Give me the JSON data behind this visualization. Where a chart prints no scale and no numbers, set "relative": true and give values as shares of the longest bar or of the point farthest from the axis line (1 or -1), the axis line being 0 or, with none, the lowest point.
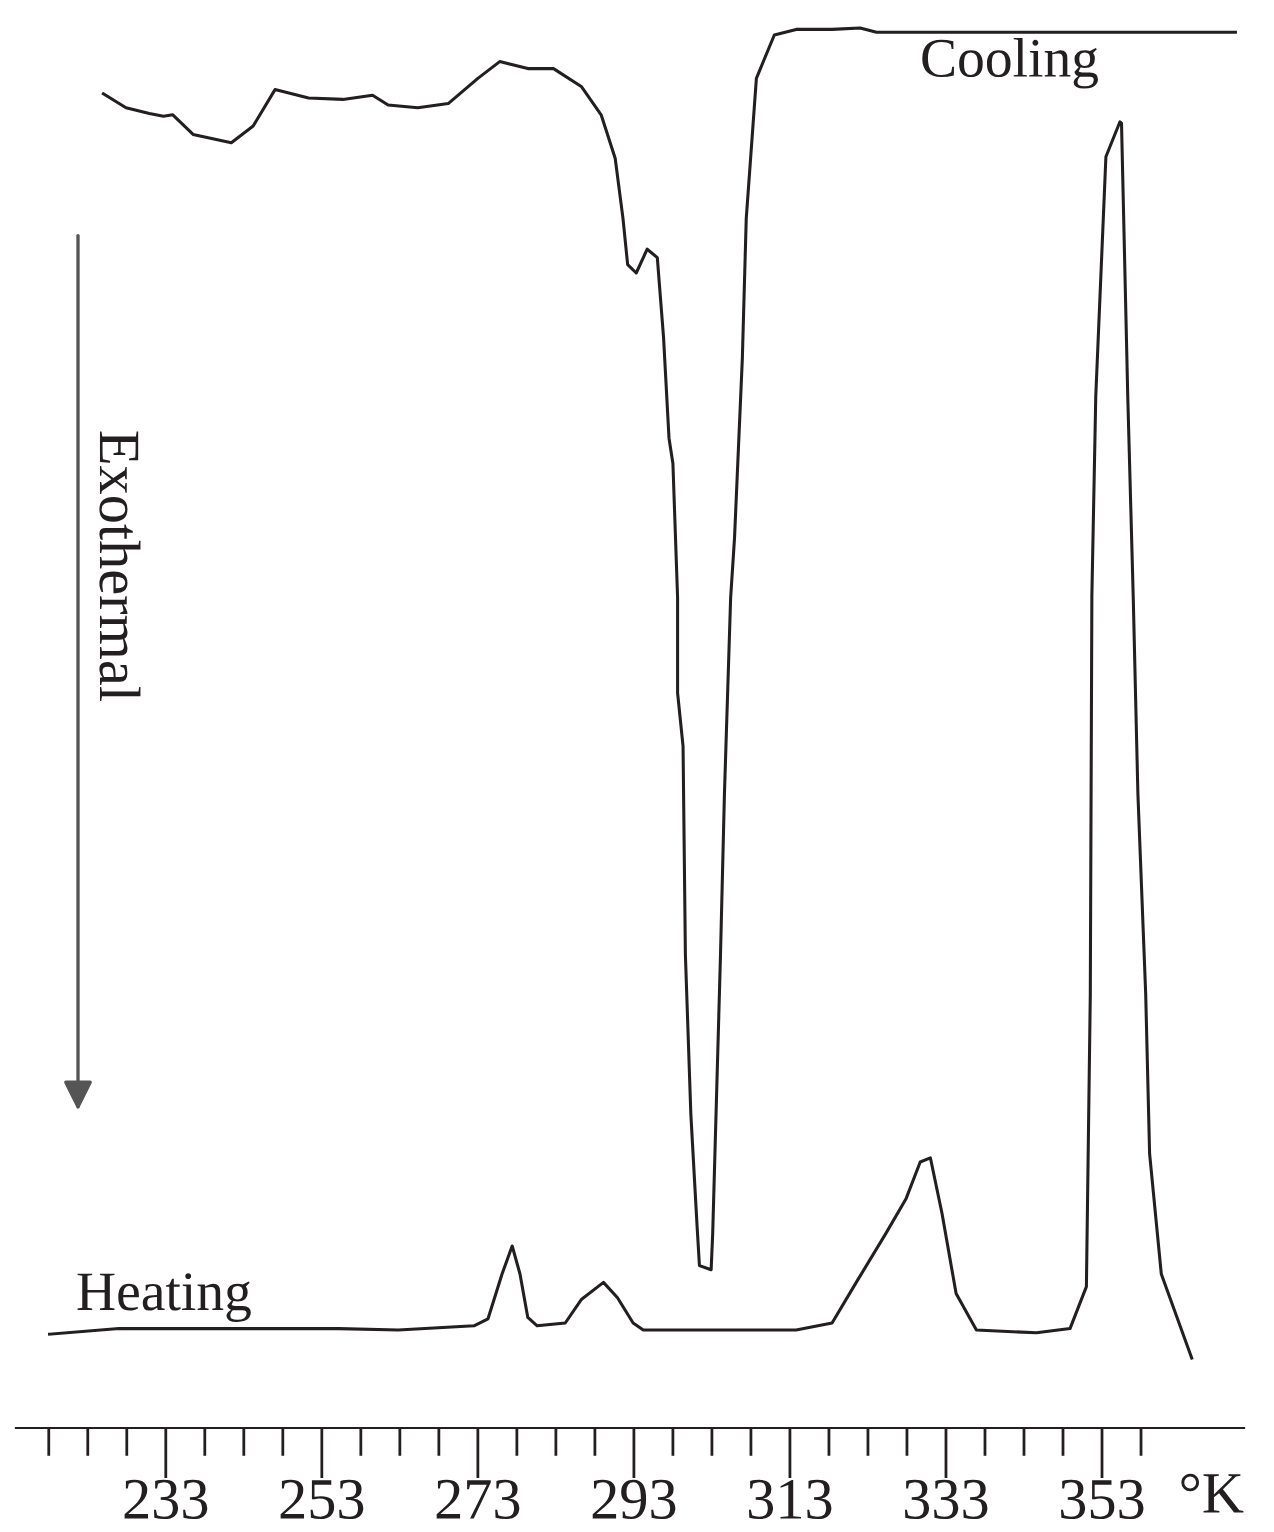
{
  "chart_data": {
    "type": "line",
    "relative": true,
    "xlabel": "°K",
    "xlim": [
      213.8,
      371.2
    ],
    "xticks": [
      {
        "value": 218,
        "label": null
      },
      {
        "value": 223,
        "label": null
      },
      {
        "value": 228,
        "label": null
      },
      233,
      {
        "value": 238,
        "label": null
      },
      {
        "value": 243,
        "label": null
      },
      {
        "value": 248,
        "label": null
      },
      253,
      {
        "value": 258,
        "label": null
      },
      {
        "value": 263,
        "label": null
      },
      {
        "value": 268,
        "label": null
      },
      273,
      {
        "value": 278,
        "label": null
      },
      {
        "value": 283,
        "label": null
      },
      {
        "value": 288,
        "label": null
      },
      293,
      {
        "value": 298,
        "label": null
      },
      {
        "value": 303,
        "label": null
      },
      {
        "value": 308,
        "label": null
      },
      313,
      {
        "value": 318,
        "label": null
      },
      {
        "value": 323,
        "label": null
      },
      {
        "value": 328,
        "label": null
      },
      333,
      {
        "value": 338,
        "label": null
      },
      {
        "value": 343,
        "label": null
      },
      {
        "value": 348,
        "label": null
      },
      353,
      {
        "value": 358,
        "label": null
      }
    ],
    "annotations": [
      "Exothermal"
    ],
    "legend": false,
    "grid": false,
    "marker": "none",
    "line_style": "solid",
    "series": [
      {
        "name": "Cooling",
        "color": "#231f20",
        "x": [
          225.0,
          227.9,
          230.9,
          232.7,
          233.9,
          236.5,
          241.4,
          244.2,
          247.0,
          251.3,
          255.7,
          259.5,
          261.5,
          265.3,
          269.2,
          273.0,
          275.8,
          279.4,
          282.7,
          286.3,
          288.8,
          290.6,
          291.6,
          292.2,
          293.3,
          294.7,
          296.0,
          296.8,
          297.5,
          298.0,
          298.6,
          298.6,
          299.3,
          299.6,
          300.3,
          301.1,
          301.4,
          302.9,
          303.1,
          304.1,
          304.6,
          305.4,
          305.9,
          306.9,
          307.4,
          308.7,
          311.0,
          313.8,
          318.4,
          322.0,
          324.1,
          334.3,
          370.1
        ],
        "values": [
          0.953,
          0.943,
          0.939,
          0.937,
          0.938,
          0.924,
          0.918,
          0.93,
          0.956,
          0.95,
          0.949,
          0.952,
          0.945,
          0.943,
          0.946,
          0.964,
          0.976,
          0.971,
          0.971,
          0.958,
          0.938,
          0.907,
          0.864,
          0.831,
          0.825,
          0.842,
          0.836,
          0.779,
          0.707,
          0.689,
          0.593,
          0.525,
          0.487,
          0.338,
          0.224,
          0.144,
          0.116,
          0.113,
          0.139,
          0.338,
          0.452,
          0.593,
          0.636,
          0.764,
          0.864,
          0.964,
          0.995,
          0.999,
          0.999,
          1.0,
          0.997,
          0.997,
          0.997
        ]
      },
      {
        "name": "Heating",
        "color": "#231f20",
        "x": [
          218.1,
          227.0,
          242.4,
          255.2,
          262.8,
          272.5,
          274.3,
          276.1,
          277.4,
          278.4,
          279.4,
          280.6,
          284.2,
          286.3,
          289.1,
          290.9,
          292.9,
          294.2,
          313.8,
          318.4,
          321.5,
          325.3,
          327.9,
          329.7,
          331.0,
          332.5,
          334.3,
          336.9,
          344.6,
          348.9,
          351.0,
          351.5,
          351.7,
          352.2,
          353.5,
          355.3,
          355.5,
          356.3,
          357.0,
          357.6,
          358.6,
          359.1,
          360.6,
          364.5
        ],
        "values": [
          0.067,
          0.071,
          0.071,
          0.071,
          0.07,
          0.073,
          0.078,
          0.11,
          0.13,
          0.11,
          0.079,
          0.073,
          0.075,
          0.092,
          0.104,
          0.093,
          0.075,
          0.07,
          0.07,
          0.075,
          0.104,
          0.139,
          0.164,
          0.19,
          0.193,
          0.153,
          0.096,
          0.07,
          0.068,
          0.071,
          0.101,
          0.31,
          0.594,
          0.737,
          0.908,
          0.933,
          0.932,
          0.737,
          0.594,
          0.453,
          0.31,
          0.196,
          0.11,
          0.05
        ]
      }
    ]
  }
}
